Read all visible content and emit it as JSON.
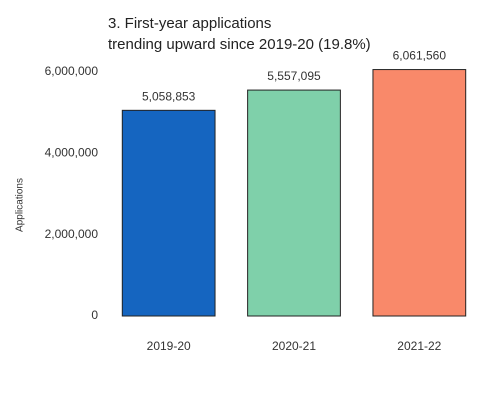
{
  "chart_data": {
    "type": "bar",
    "title": [
      "3. First-year applications",
      "trending upward since 2019-20 (19.8%)"
    ],
    "y_label": "Applications",
    "categories": [
      "2019-20",
      "2020-21",
      "2021-22"
    ],
    "values": [
      5058853,
      5557095,
      6061560
    ],
    "value_labels": [
      "5,058,853",
      "5,557,095",
      "6,061,560"
    ],
    "colors": [
      "#1565c0",
      "#7fd0aa",
      "#f9896a"
    ],
    "ylim": [
      0,
      6100000
    ],
    "yticks": [
      0,
      {
        "value": 2000000,
        "label": "2,000,000"
      },
      {
        "value": 4000000,
        "label": "4,000,000"
      },
      {
        "value": 6000000,
        "label": "6,000,000"
      }
    ],
    "grid": false
  }
}
